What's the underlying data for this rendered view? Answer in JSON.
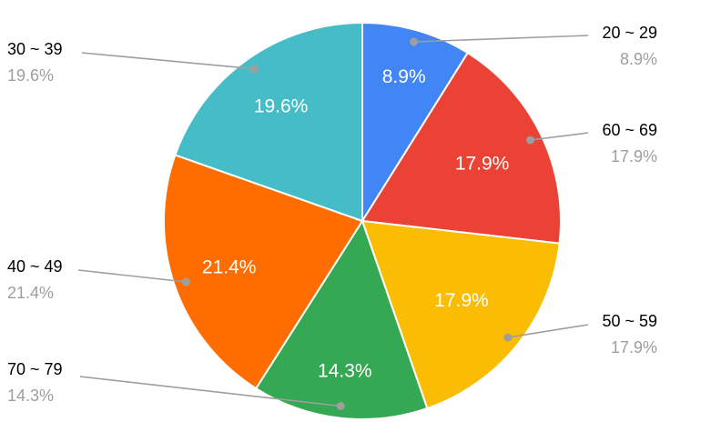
{
  "chart_data": {
    "type": "pie",
    "title": "",
    "legend_position": "outside-callouts",
    "start_angle_deg": 0,
    "direction": "clockwise",
    "background_color": "#ffffff",
    "callout_text_color": "#000000",
    "callout_percent_color": "#9e9e9e",
    "leader_line_color": "#9e9e9e",
    "slice_label_color": "#ffffff",
    "categories": [
      "20 ~ 29",
      "60 ~ 69",
      "50 ~ 59",
      "70 ~ 79",
      "40 ~ 49",
      "30 ~ 39"
    ],
    "values": [
      8.9,
      17.9,
      17.9,
      14.3,
      21.4,
      19.6
    ],
    "slices": [
      {
        "label": "20 ~ 29",
        "value": 8.9,
        "display": "8.9%",
        "color": "#4285F4"
      },
      {
        "label": "60 ~ 69",
        "value": 17.9,
        "display": "17.9%",
        "color": "#EA4335"
      },
      {
        "label": "50 ~ 59",
        "value": 17.9,
        "display": "17.9%",
        "color": "#FBBC04"
      },
      {
        "label": "70 ~ 79",
        "value": 14.3,
        "display": "14.3%",
        "color": "#34A853"
      },
      {
        "label": "40 ~ 49",
        "value": 21.4,
        "display": "21.4%",
        "color": "#FF6D01"
      },
      {
        "label": "30 ~ 39",
        "value": 19.6,
        "display": "19.6%",
        "color": "#46BDC6"
      }
    ]
  }
}
